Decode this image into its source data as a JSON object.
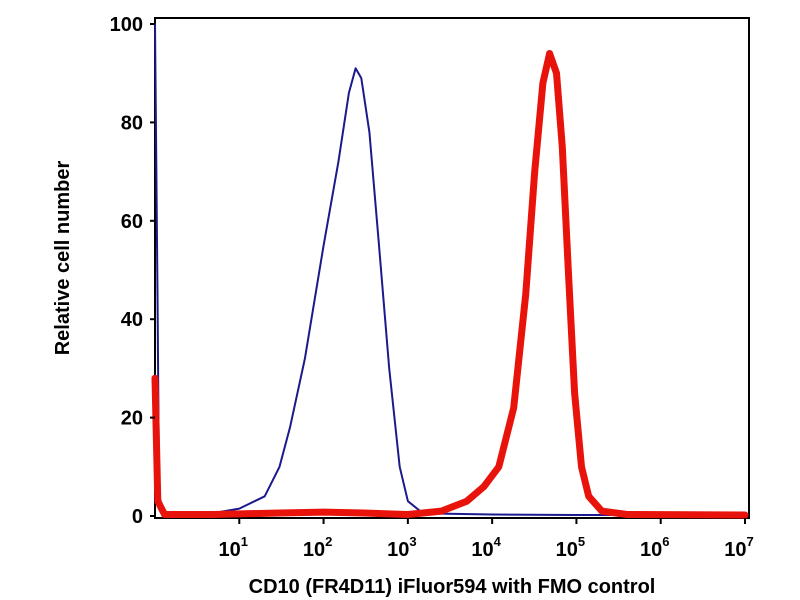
{
  "chart_data": {
    "type": "line",
    "title": "",
    "xlabel": "CD10 (FR4D11) iFluor594 with FMO control",
    "ylabel": "Relative cell number",
    "xscale": "log",
    "xlim": [
      1,
      10000000
    ],
    "ylim": [
      0,
      100
    ],
    "grid": false,
    "legend": "none",
    "x_ticks": [
      {
        "base": "10",
        "exp": "1",
        "value": 10
      },
      {
        "base": "10",
        "exp": "2",
        "value": 100
      },
      {
        "base": "10",
        "exp": "3",
        "value": 1000
      },
      {
        "base": "10",
        "exp": "4",
        "value": 10000
      },
      {
        "base": "10",
        "exp": "5",
        "value": 100000
      },
      {
        "base": "10",
        "exp": "6",
        "value": 1000000
      },
      {
        "base": "10",
        "exp": "7",
        "value": 10000000
      }
    ],
    "y_ticks": [
      "0",
      "20",
      "40",
      "60",
      "80",
      "100"
    ],
    "series": [
      {
        "color": "#1a1a8c",
        "stroke": "thin",
        "points": [
          [
            1.0,
            100
          ],
          [
            1.07,
            45
          ],
          [
            1.12,
            4
          ],
          [
            1.3,
            0.5
          ],
          [
            3,
            0.3
          ],
          [
            5,
            0.6
          ],
          [
            10,
            1.5
          ],
          [
            20,
            4
          ],
          [
            30,
            10
          ],
          [
            40,
            18
          ],
          [
            60,
            32
          ],
          [
            100,
            55
          ],
          [
            150,
            72
          ],
          [
            200,
            86
          ],
          [
            240,
            91
          ],
          [
            280,
            89
          ],
          [
            350,
            78
          ],
          [
            450,
            56
          ],
          [
            600,
            30
          ],
          [
            800,
            10
          ],
          [
            1000,
            3
          ],
          [
            1400,
            1
          ],
          [
            2000,
            0.5
          ],
          [
            10000,
            0.3
          ],
          [
            100000,
            0.2
          ],
          [
            10000000,
            0.2
          ]
        ]
      },
      {
        "color": "#e8140c",
        "stroke": "thick",
        "points": [
          [
            1.0,
            28
          ],
          [
            1.08,
            3
          ],
          [
            1.3,
            0.3
          ],
          [
            5,
            0.3
          ],
          [
            30,
            0.6
          ],
          [
            100,
            0.8
          ],
          [
            300,
            0.6
          ],
          [
            1000,
            0.3
          ],
          [
            2500,
            1
          ],
          [
            5000,
            3
          ],
          [
            8000,
            6
          ],
          [
            12000,
            10
          ],
          [
            18000,
            22
          ],
          [
            25000,
            45
          ],
          [
            32000,
            70
          ],
          [
            40000,
            88
          ],
          [
            48000,
            94
          ],
          [
            58000,
            90
          ],
          [
            68000,
            75
          ],
          [
            80000,
            50
          ],
          [
            95000,
            25
          ],
          [
            115000,
            10
          ],
          [
            140000,
            4
          ],
          [
            200000,
            1
          ],
          [
            400000,
            0.3
          ],
          [
            10000000,
            0.2
          ]
        ]
      }
    ]
  }
}
